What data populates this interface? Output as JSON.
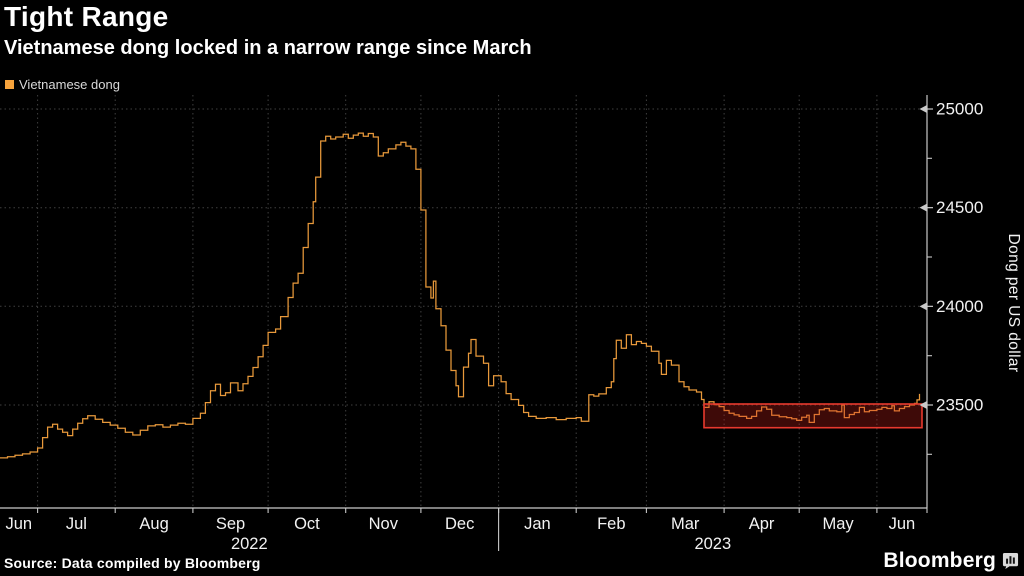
{
  "header": {
    "title": "Tight Range",
    "subtitle": "Vietnamese dong locked in a narrow range since March"
  },
  "legend": {
    "label": "Vietnamese dong",
    "swatch_color": "#F6A33C"
  },
  "footer": {
    "source": "Source: Data compiled by Bloomberg",
    "brand": "Bloomberg"
  },
  "colors": {
    "background": "#000000",
    "line": "#E8993B",
    "grid": "#3F3F3F",
    "axis": "#C9C9C9",
    "tick_label": "#F2F2F2",
    "highlight_stroke": "#E8392E",
    "highlight_fill": "rgba(205,32,26,0.30)"
  },
  "chart_data": {
    "type": "line",
    "style": "step",
    "title": "Tight Range",
    "ylabel": "Dong per US dollar",
    "legend_position": "top-left",
    "grid": "dotted",
    "ylim": [
      22978,
      25071
    ],
    "yticks_major": [
      23500,
      24000,
      24500,
      25000
    ],
    "yticks_minor": [
      23250,
      23750,
      24250,
      24750
    ],
    "xdomain": [
      "2022-06-16",
      "2023-06-21"
    ],
    "month_boundaries": [
      "2022-07-01",
      "2022-08-01",
      "2022-09-01",
      "2022-10-01",
      "2022-11-01",
      "2022-12-01",
      "2023-01-01",
      "2023-02-01",
      "2023-03-01",
      "2023-04-01",
      "2023-05-01",
      "2023-06-01"
    ],
    "month_labels": [
      "Jun",
      "Jul",
      "Aug",
      "Sep",
      "Oct",
      "Nov",
      "Dec",
      "Jan",
      "Feb",
      "Mar",
      "Apr",
      "May",
      "Jun"
    ],
    "year_separator": "2023-01-01",
    "year_labels": [
      {
        "label": "2022",
        "span": [
          "2022-06-16",
          "2023-01-01"
        ]
      },
      {
        "label": "2023",
        "span": [
          "2023-01-01",
          "2023-06-21"
        ]
      }
    ],
    "highlight_box": {
      "name": "tight-range-since-march",
      "x0": "2023-03-24",
      "x1": "2023-06-19",
      "y0": 23385,
      "y1": 23505
    },
    "series": [
      {
        "name": "Vietnamese dong",
        "points": [
          [
            "2022-06-16",
            23232
          ],
          [
            "2022-06-19",
            23238
          ],
          [
            "2022-06-22",
            23245
          ],
          [
            "2022-06-25",
            23252
          ],
          [
            "2022-06-28",
            23262
          ],
          [
            "2022-07-01",
            23282
          ],
          [
            "2022-07-03",
            23335
          ],
          [
            "2022-07-05",
            23388
          ],
          [
            "2022-07-07",
            23402
          ],
          [
            "2022-07-09",
            23378
          ],
          [
            "2022-07-11",
            23362
          ],
          [
            "2022-07-13",
            23345
          ],
          [
            "2022-07-15",
            23378
          ],
          [
            "2022-07-17",
            23408
          ],
          [
            "2022-07-19",
            23430
          ],
          [
            "2022-07-21",
            23446
          ],
          [
            "2022-07-24",
            23428
          ],
          [
            "2022-07-27",
            23412
          ],
          [
            "2022-07-30",
            23398
          ],
          [
            "2022-08-02",
            23382
          ],
          [
            "2022-08-05",
            23362
          ],
          [
            "2022-08-08",
            23348
          ],
          [
            "2022-08-11",
            23372
          ],
          [
            "2022-08-14",
            23394
          ],
          [
            "2022-08-17",
            23400
          ],
          [
            "2022-08-20",
            23388
          ],
          [
            "2022-08-23",
            23398
          ],
          [
            "2022-08-26",
            23408
          ],
          [
            "2022-08-29",
            23402
          ],
          [
            "2022-09-01",
            23432
          ],
          [
            "2022-09-04",
            23458
          ],
          [
            "2022-09-06",
            23512
          ],
          [
            "2022-09-08",
            23572
          ],
          [
            "2022-09-10",
            23605
          ],
          [
            "2022-09-12",
            23548
          ],
          [
            "2022-09-14",
            23562
          ],
          [
            "2022-09-16",
            23612
          ],
          [
            "2022-09-19",
            23572
          ],
          [
            "2022-09-21",
            23608
          ],
          [
            "2022-09-23",
            23645
          ],
          [
            "2022-09-25",
            23690
          ],
          [
            "2022-09-27",
            23745
          ],
          [
            "2022-09-29",
            23802
          ],
          [
            "2022-10-01",
            23868
          ],
          [
            "2022-10-04",
            23885
          ],
          [
            "2022-10-06",
            23948
          ],
          [
            "2022-10-09",
            24045
          ],
          [
            "2022-10-11",
            24118
          ],
          [
            "2022-10-13",
            24168
          ],
          [
            "2022-10-15",
            24298
          ],
          [
            "2022-10-17",
            24420
          ],
          [
            "2022-10-19",
            24530
          ],
          [
            "2022-10-20",
            24655
          ],
          [
            "2022-10-22",
            24838
          ],
          [
            "2022-10-24",
            24862
          ],
          [
            "2022-10-26",
            24848
          ],
          [
            "2022-10-28",
            24858
          ],
          [
            "2022-10-31",
            24872
          ],
          [
            "2022-11-02",
            24852
          ],
          [
            "2022-11-04",
            24868
          ],
          [
            "2022-11-06",
            24878
          ],
          [
            "2022-11-08",
            24862
          ],
          [
            "2022-11-10",
            24876
          ],
          [
            "2022-11-12",
            24858
          ],
          [
            "2022-11-14",
            24762
          ],
          [
            "2022-11-16",
            24778
          ],
          [
            "2022-11-18",
            24798
          ],
          [
            "2022-11-21",
            24818
          ],
          [
            "2022-11-23",
            24832
          ],
          [
            "2022-11-25",
            24812
          ],
          [
            "2022-11-27",
            24798
          ],
          [
            "2022-11-29",
            24695
          ],
          [
            "2022-12-01",
            24488
          ],
          [
            "2022-12-03",
            24098
          ],
          [
            "2022-12-05",
            24042
          ],
          [
            "2022-12-06",
            24128
          ],
          [
            "2022-12-07",
            23988
          ],
          [
            "2022-12-09",
            23902
          ],
          [
            "2022-12-11",
            23778
          ],
          [
            "2022-12-13",
            23675
          ],
          [
            "2022-12-15",
            23598
          ],
          [
            "2022-12-16",
            23542
          ],
          [
            "2022-12-18",
            23692
          ],
          [
            "2022-12-20",
            23762
          ],
          [
            "2022-12-21",
            23832
          ],
          [
            "2022-12-23",
            23748
          ],
          [
            "2022-12-26",
            23712
          ],
          [
            "2022-12-28",
            23598
          ],
          [
            "2022-12-30",
            23648
          ],
          [
            "2023-01-02",
            23618
          ],
          [
            "2023-01-04",
            23558
          ],
          [
            "2023-01-06",
            23528
          ],
          [
            "2023-01-09",
            23498
          ],
          [
            "2023-01-11",
            23462
          ],
          [
            "2023-01-13",
            23442
          ],
          [
            "2023-01-16",
            23432
          ],
          [
            "2023-01-20",
            23436
          ],
          [
            "2023-01-24",
            23426
          ],
          [
            "2023-01-28",
            23432
          ],
          [
            "2023-02-01",
            23436
          ],
          [
            "2023-02-03",
            23418
          ],
          [
            "2023-02-06",
            23552
          ],
          [
            "2023-02-08",
            23545
          ],
          [
            "2023-02-10",
            23556
          ],
          [
            "2023-02-13",
            23588
          ],
          [
            "2023-02-15",
            23618
          ],
          [
            "2023-02-16",
            23735
          ],
          [
            "2023-02-17",
            23828
          ],
          [
            "2023-02-19",
            23788
          ],
          [
            "2023-02-21",
            23856
          ],
          [
            "2023-02-23",
            23806
          ],
          [
            "2023-02-25",
            23822
          ],
          [
            "2023-02-27",
            23812
          ],
          [
            "2023-03-01",
            23798
          ],
          [
            "2023-03-03",
            23772
          ],
          [
            "2023-03-06",
            23712
          ],
          [
            "2023-03-07",
            23655
          ],
          [
            "2023-03-09",
            23726
          ],
          [
            "2023-03-11",
            23702
          ],
          [
            "2023-03-14",
            23618
          ],
          [
            "2023-03-16",
            23592
          ],
          [
            "2023-03-18",
            23576
          ],
          [
            "2023-03-21",
            23566
          ],
          [
            "2023-03-23",
            23528
          ],
          [
            "2023-03-24",
            23488
          ],
          [
            "2023-03-26",
            23516
          ],
          [
            "2023-03-28",
            23502
          ],
          [
            "2023-03-30",
            23492
          ],
          [
            "2023-04-01",
            23472
          ],
          [
            "2023-04-03",
            23458
          ],
          [
            "2023-04-05",
            23450
          ],
          [
            "2023-04-07",
            23442
          ],
          [
            "2023-04-10",
            23432
          ],
          [
            "2023-04-12",
            23442
          ],
          [
            "2023-04-14",
            23470
          ],
          [
            "2023-04-16",
            23490
          ],
          [
            "2023-04-18",
            23478
          ],
          [
            "2023-04-20",
            23448
          ],
          [
            "2023-04-23",
            23440
          ],
          [
            "2023-04-26",
            23436
          ],
          [
            "2023-04-28",
            23430
          ],
          [
            "2023-04-30",
            23422
          ],
          [
            "2023-05-02",
            23438
          ],
          [
            "2023-05-04",
            23448
          ],
          [
            "2023-05-05",
            23412
          ],
          [
            "2023-05-07",
            23452
          ],
          [
            "2023-05-09",
            23476
          ],
          [
            "2023-05-11",
            23482
          ],
          [
            "2023-05-13",
            23470
          ],
          [
            "2023-05-16",
            23466
          ],
          [
            "2023-05-18",
            23500
          ],
          [
            "2023-05-19",
            23436
          ],
          [
            "2023-05-21",
            23452
          ],
          [
            "2023-05-23",
            23462
          ],
          [
            "2023-05-25",
            23488
          ],
          [
            "2023-05-27",
            23466
          ],
          [
            "2023-05-29",
            23472
          ],
          [
            "2023-06-01",
            23478
          ],
          [
            "2023-06-03",
            23488
          ],
          [
            "2023-06-05",
            23482
          ],
          [
            "2023-06-07",
            23496
          ],
          [
            "2023-06-08",
            23470
          ],
          [
            "2023-06-10",
            23482
          ],
          [
            "2023-06-12",
            23492
          ],
          [
            "2023-06-14",
            23500
          ],
          [
            "2023-06-16",
            23508
          ],
          [
            "2023-06-17",
            23526
          ],
          [
            "2023-06-18",
            23556
          ]
        ]
      }
    ]
  }
}
